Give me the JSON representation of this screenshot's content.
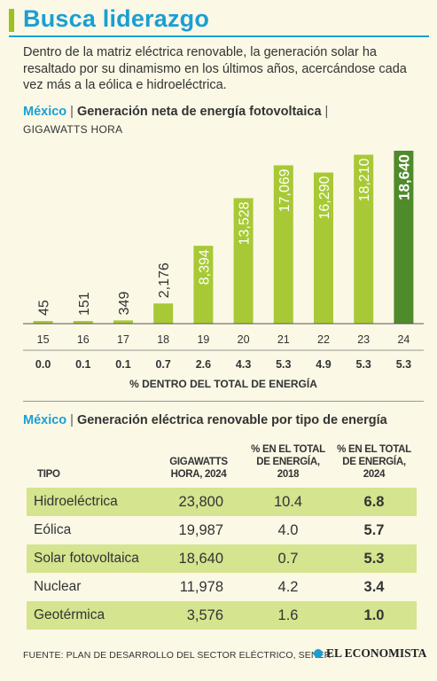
{
  "header": {
    "title": "Busca liderazgo",
    "intro": "Dentro de la matriz eléctrica renovable, la generación solar ha resaltado por su dinamismo en los últimos años, acercándose cada vez más a la eólica e hidroeléctrica."
  },
  "colors": {
    "accent_blue": "#1a9fd3",
    "bar_light": "#a8c935",
    "bar_dark": "#4f8a2b",
    "row_shade": "#d4e48f",
    "background": "#fbf8e6"
  },
  "chart_section": {
    "country": "México",
    "separator": "|",
    "description": "Generación neta de energía fotovoltaica",
    "trailing_separator": "|",
    "unit": "GIGAWATTS HORA",
    "share_label": "% DENTRO DEL TOTAL DE ENERGÍA"
  },
  "chart_data": {
    "type": "bar",
    "categories": [
      "15",
      "16",
      "17",
      "18",
      "19",
      "20",
      "21",
      "22",
      "23",
      "24"
    ],
    "values": [
      45,
      151,
      349,
      2176,
      8394,
      13528,
      17069,
      16290,
      18210,
      18640
    ],
    "value_labels": [
      "45",
      "151",
      "349",
      "2,176",
      "8,394",
      "13,528",
      "17,069",
      "16,290",
      "18,210",
      "18,640"
    ],
    "share_values": [
      "0.0",
      "0.1",
      "0.1",
      "0.7",
      "2.6",
      "4.3",
      "5.3",
      "4.9",
      "5.3",
      "5.3"
    ],
    "highlight_index": 9,
    "ylabel": "GIGAWATTS HORA",
    "xlabel": "",
    "ylim": [
      0,
      18640
    ],
    "grid": false
  },
  "table_section": {
    "country": "México",
    "separator": "|",
    "description": "Generación eléctrica renovable por tipo de energía",
    "headers": [
      "TIPO",
      "GIGAWATTS HORA, 2024",
      "% EN EL TOTAL DE ENERGÍA, 2018",
      "% EN EL TOTAL DE ENERGÍA, 2024"
    ],
    "rows": [
      [
        "Hidroeléctrica",
        "23,800",
        "10.4",
        "6.8"
      ],
      [
        "Eólica",
        "19,987",
        "4.0",
        "5.7"
      ],
      [
        "Solar fotovoltaica",
        "18,640",
        "0.7",
        "5.3"
      ],
      [
        "Nuclear",
        "11,978",
        "4.2",
        "3.4"
      ],
      [
        "Geotérmica",
        "3,576",
        "1.6",
        "1.0"
      ]
    ]
  },
  "footer": {
    "source": "FUENTE: PLAN DE DESARROLLO DEL SECTOR ELÉCTRICO, SENER",
    "brand": "EL ECONOMISTA"
  }
}
